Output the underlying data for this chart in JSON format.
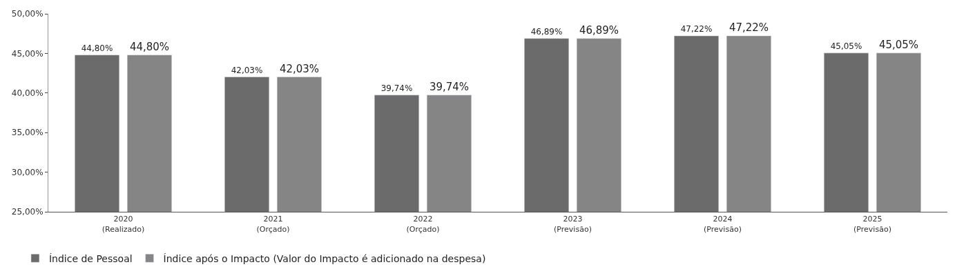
{
  "chart_data": {
    "type": "bar",
    "categories": [
      "2020\n(Realizado)",
      "2021\n(Orçado)",
      "2022\n(Orçado)",
      "2023\n(Previsão)",
      "2024\n(Previsão)",
      "2025\n(Previsão)"
    ],
    "series": [
      {
        "name": "Índice de Pessoal",
        "color": "#6b6b6b",
        "values": [
          44.8,
          42.03,
          39.74,
          46.89,
          47.22,
          45.05
        ],
        "value_labels": [
          "44,80%",
          "42,03%",
          "39,74%",
          "46,89%",
          "47,22%",
          "45,05%"
        ]
      },
      {
        "name": "Índice após o Impacto (Valor do Impacto é adicionado na despesa)",
        "color": "#858585",
        "values": [
          44.8,
          42.03,
          39.74,
          46.89,
          47.22,
          45.05
        ],
        "value_labels": [
          "44,80%",
          "42,03%",
          "39,74%",
          "46,89%",
          "47,22%",
          "45,05%"
        ]
      }
    ],
    "ylim": [
      25,
      50
    ],
    "yticks": [
      {
        "value": 25,
        "label": "25,00%"
      },
      {
        "value": 30,
        "label": "30,00%"
      },
      {
        "value": 35,
        "label": "35,00%"
      },
      {
        "value": 40,
        "label": "40,00%"
      },
      {
        "value": 45,
        "label": "45,00%"
      },
      {
        "value": 50,
        "label": "50,00%"
      }
    ],
    "legend": "bottom left"
  }
}
